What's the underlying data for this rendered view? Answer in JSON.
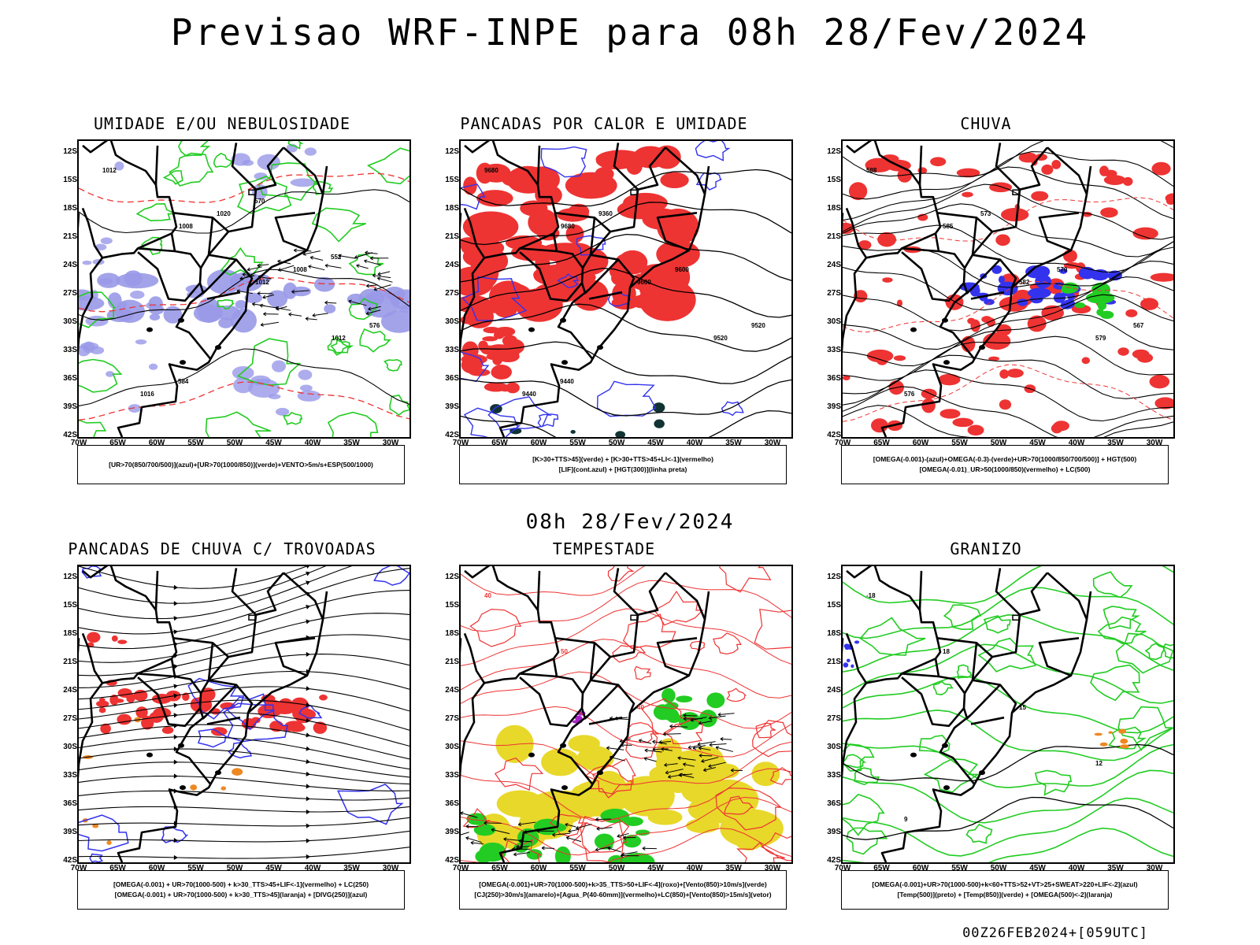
{
  "title": "Previsao WRF-INPE  para 08h 28/Fev/2024",
  "subtitle": "08h 28/Fev/2024",
  "footer": "00Z26FEB2024+[059UTC]",
  "lat_labels": [
    "12S",
    "15S",
    "18S",
    "21S",
    "24S",
    "27S",
    "30S",
    "33S",
    "36S",
    "39S",
    "42S"
  ],
  "lon_labels": [
    "70W",
    "65W",
    "60W",
    "55W",
    "50W",
    "45W",
    "40W",
    "35W",
    "30W"
  ],
  "colors": {
    "red": "#ee3333",
    "green": "#22cc22",
    "blue": "#3333ee",
    "lavender": "#9999e8",
    "yellow": "#e8d82a",
    "orange": "#ee8822",
    "purple": "#aa22cc",
    "darkteal": "#113333"
  },
  "panels": [
    {
      "title": "UMIDADE E/OU NEBULOSIDADE",
      "legend": [
        "[UR>70(850/700/500)](azul)+[UR>70(1000/850)](verde)+VENTO>5m/s+ESP(500/1000)"
      ],
      "labels": [
        "1012",
        "1008",
        "1012",
        "1012",
        "1016",
        "1020",
        "1008",
        "576",
        "584",
        "570",
        "552"
      ]
    },
    {
      "title": "PANCADAS POR CALOR E UMIDADE",
      "legend": [
        "[K>30+TTS>45](verde) + [K>30+TTS>45+LI<-1](vermelho)",
        "[LIF](cont.azul) + [HGT(300)](linha preta)"
      ],
      "labels": [
        "9680",
        "9680",
        "9600",
        "9520",
        "9440",
        "9360",
        "9600",
        "9520",
        "9440"
      ]
    },
    {
      "title": "CHUVA",
      "legend": [
        "[OMEGA(-0.001)-(azul)+OMEGA(-0.3)-(verde)+UR>70(1000/850/700/500)] + HGT(500)",
        "[OMEGA(-0.01)_UR>50(1000/850)(vermelho) + LC(500)"
      ],
      "labels": [
        "588",
        "585",
        "582",
        "579",
        "576",
        "573",
        "570",
        "567"
      ]
    },
    {
      "title": "PANCADAS DE CHUVA C/ TROVOADAS",
      "legend": [
        "[OMEGA(-0.001) + UR>70(1000-500) + k>30_TTS>45+LIF<-1](vermelho) + LC(250)",
        "[OMEGA(-0.001) + UR>70(1000-500) + k>30_TTS>45](laranja) + [DIVG(250)](azul)"
      ],
      "labels": []
    },
    {
      "title": "TEMPESTADE",
      "legend": [
        "[OMEGA(-0.001)+UR>70(1000-500)+k>35_TTS>50+LIF<-4](roxo)+[Vento(850)>10m/s](verde)",
        "[CJ(250)>30m/s](amarelo)+[Agua_P(40-60mm)](vermelho)+LC(850)+[Vento(850)>15m/s](vetor)"
      ],
      "labels": [
        "40",
        "50",
        "40"
      ]
    },
    {
      "title": "GRANIZO",
      "legend": [
        "[OMEGA(-0.001)+UR>70(1000-500)+k<60+TTS>52+VT>25+SWEAT>220+LIF<-2](azul)",
        "[Temp(500)](preto) + [Temp(850)](verde) + [OMEGA(500)<-2](laranja)"
      ],
      "labels": [
        "-18",
        "18",
        "15",
        "12",
        "9"
      ]
    }
  ]
}
